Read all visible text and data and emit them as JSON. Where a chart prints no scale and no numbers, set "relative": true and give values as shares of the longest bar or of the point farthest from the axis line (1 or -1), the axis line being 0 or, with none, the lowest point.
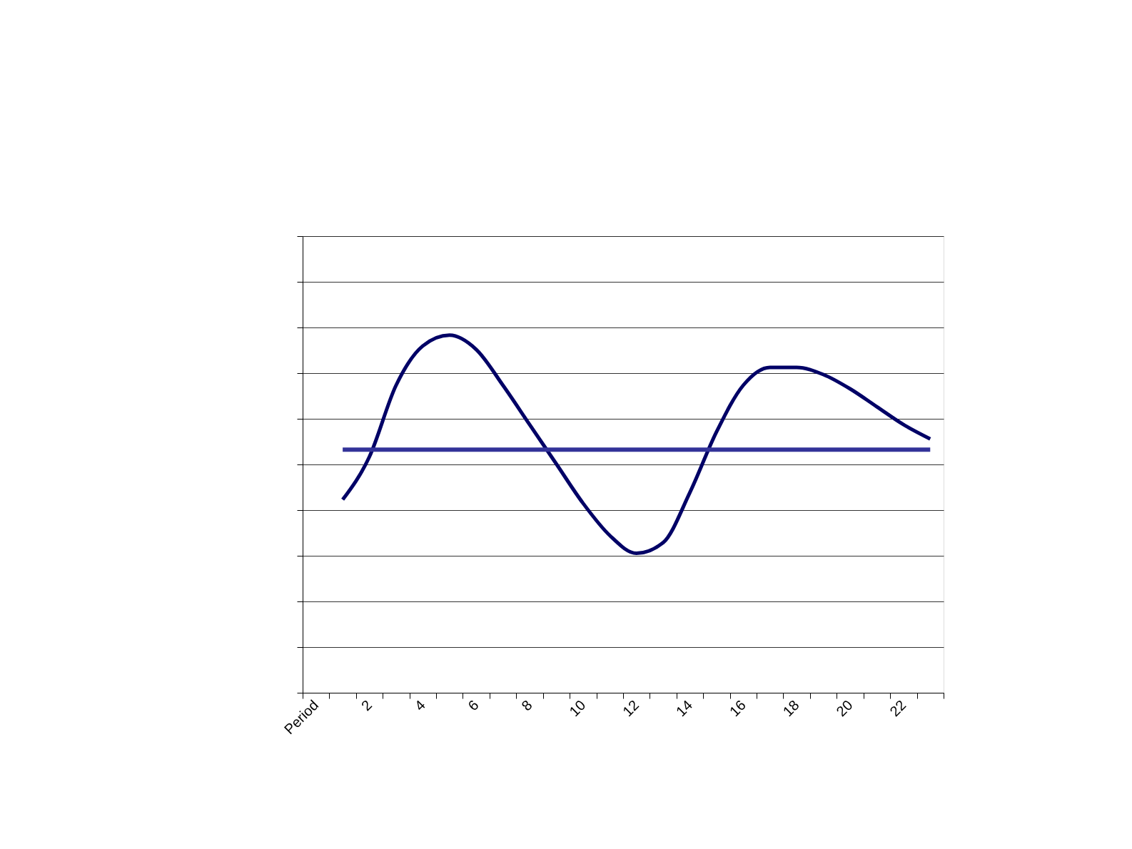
{
  "chart_data": {
    "type": "line",
    "relative": true,
    "grid": "y",
    "marker": "none",
    "line_style": "solid",
    "categories": [
      "Period",
      null,
      "2",
      null,
      "4",
      null,
      "6",
      null,
      "8",
      null,
      "10",
      null,
      "12",
      null,
      "14",
      null,
      "16",
      null,
      "18",
      null,
      "20",
      null,
      "22",
      null
    ],
    "series": [
      {
        "color": "#000066",
        "values": [
          null,
          0.54,
          0.66,
          0.86,
          0.97,
          1.0,
          0.96,
          0.86,
          0.75,
          0.64,
          0.53,
          0.44,
          0.39,
          0.42,
          0.56,
          0.73,
          0.86,
          0.91,
          0.91,
          0.89,
          0.85,
          0.8,
          0.75,
          0.71
        ]
      },
      {
        "color": "#333399",
        "values": [
          null,
          0.68,
          0.68,
          0.68,
          0.68,
          0.68,
          0.68,
          0.68,
          0.68,
          0.68,
          0.68,
          0.68,
          0.68,
          0.68,
          0.68,
          0.68,
          0.68,
          0.68,
          0.68,
          0.68,
          0.68,
          0.68,
          0.68,
          0.68
        ]
      }
    ]
  }
}
